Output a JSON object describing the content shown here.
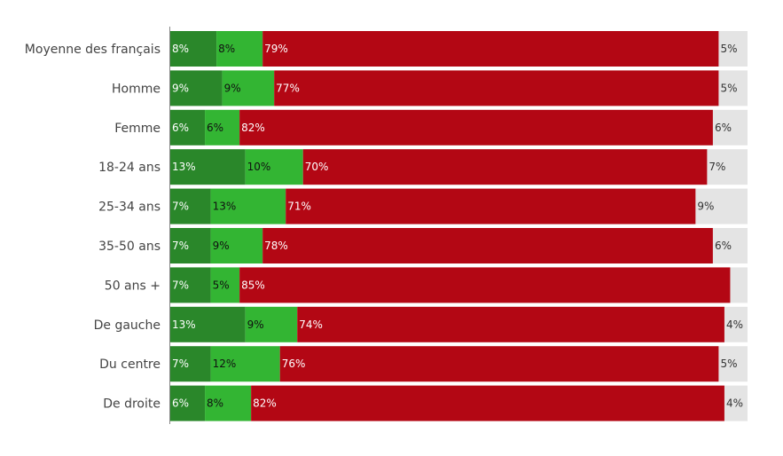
{
  "chart_data": {
    "type": "bar",
    "orientation": "horizontal",
    "stacked": true,
    "title": "",
    "xlabel": "",
    "ylabel": "",
    "xlim": [
      0,
      100
    ],
    "categories": [
      "Moyenne des français",
      "Homme",
      "Femme",
      "18-24 ans",
      "25-34 ans",
      "35-50 ans",
      "50 ans +",
      "De gauche",
      "Du centre",
      "De droite"
    ],
    "series": [
      {
        "name": "series-1",
        "color": "#2a872a",
        "text_color": "#ffffff",
        "values": [
          8,
          9,
          6,
          13,
          7,
          7,
          7,
          13,
          7,
          6
        ]
      },
      {
        "name": "series-2",
        "color": "#33b533",
        "text_color": "#111111",
        "values": [
          8,
          9,
          6,
          10,
          13,
          9,
          5,
          9,
          12,
          8
        ]
      },
      {
        "name": "series-3",
        "color": "#b30714",
        "text_color": "#ffffff",
        "values": [
          79,
          77,
          82,
          70,
          71,
          78,
          85,
          74,
          76,
          82
        ]
      },
      {
        "name": "series-4",
        "color": "#e4e4e4",
        "text_color": "#333333",
        "values": [
          5,
          5,
          6,
          7,
          9,
          6,
          3,
          4,
          5,
          4
        ]
      }
    ],
    "labels": [
      [
        "8%",
        "9%",
        "6%",
        "13%",
        "7%",
        "7%",
        "7%",
        "13%",
        "7%",
        "6%"
      ],
      [
        "8%",
        "9%",
        "6%",
        "10%",
        "13%",
        "9%",
        "5%",
        "9%",
        "12%",
        "8%"
      ],
      [
        "79%",
        "77%",
        "82%",
        "70%",
        "71%",
        "78%",
        "85%",
        "74%",
        "76%",
        "82%"
      ],
      [
        "5%",
        "5%",
        "6%",
        "7%",
        "9%",
        "6%",
        "",
        "4%",
        "5%",
        "4%"
      ]
    ],
    "legend": "none",
    "grid": false
  }
}
